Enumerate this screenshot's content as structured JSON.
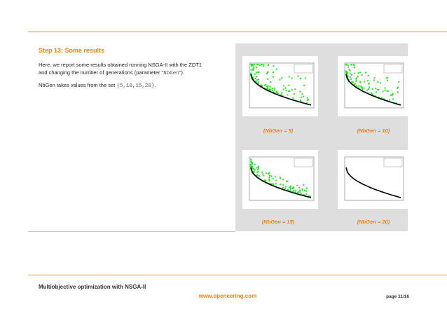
{
  "section": {
    "title": "Step 13: Some results",
    "paragraph1": {
      "line1": "Here, we report some results obtained running NSGA-II with the ZDT1",
      "line2_start": "and changing the number of generations (parameter \"",
      "line2_code": "NbGen",
      "line2_end": "\")."
    },
    "paragraph2": {
      "start": "NbGen takes values from the set ",
      "code": "{5,10,15,20}",
      "end": "."
    }
  },
  "figures": [
    {
      "caption": "(NbGen = 5)"
    },
    {
      "caption": "(NbGen = 10)"
    },
    {
      "caption": "(NbGen = 15)"
    },
    {
      "caption": "(NbGen = 20)"
    }
  ],
  "footer": {
    "title": "Multiobjective optimization with NSGA-II",
    "website": "www.openeering.com",
    "page": "page 11/16"
  }
}
